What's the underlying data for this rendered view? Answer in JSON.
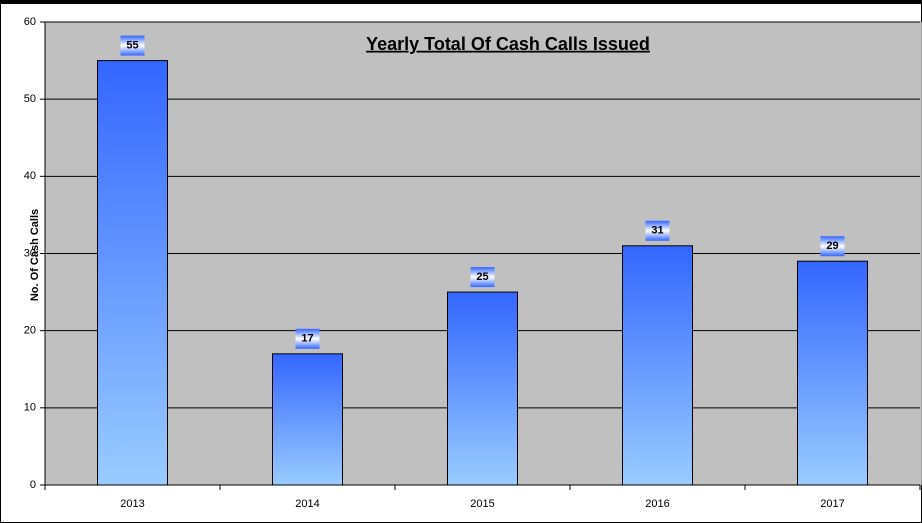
{
  "chart_data": {
    "type": "bar",
    "title": "Yearly Total Of Cash Calls Issued",
    "y_label": "No. Of Cash Calls",
    "categories": [
      "2013",
      "2014",
      "2015",
      "2016",
      "2017"
    ],
    "values": [
      55,
      17,
      25,
      31,
      29
    ],
    "color": "#3366ff",
    "ylim": [
      0,
      60
    ],
    "yticks": [
      0,
      10,
      20,
      30,
      40,
      50,
      60
    ],
    "grid": true
  }
}
